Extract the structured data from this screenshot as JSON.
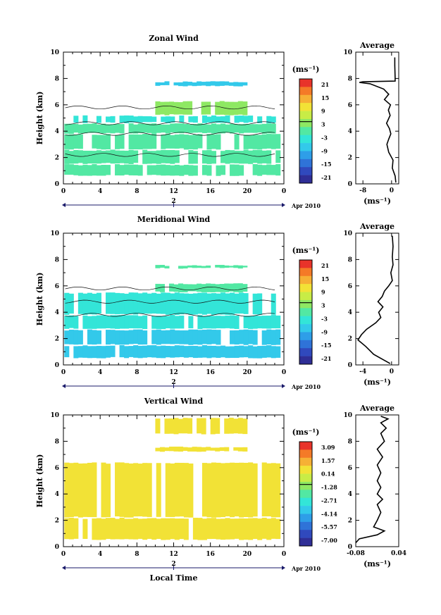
{
  "chart_data": [
    {
      "type": "heatmap",
      "title": "Zonal Wind",
      "ylabel": "Height (km)",
      "xlim": [
        0,
        24
      ],
      "ylim": [
        0,
        10
      ],
      "x_ticks": [
        "0",
        "4",
        "8",
        "12",
        "16",
        "20",
        "0"
      ],
      "y_ticks": [
        "0",
        "2",
        "4",
        "6",
        "8",
        "10"
      ],
      "date_marker": "2",
      "date_label": "Apr 2010",
      "colorbar": {
        "unit": "(ms⁻¹)",
        "ticks": [
          "21",
          "15",
          "9",
          "3",
          "-3",
          "-9",
          "-15",
          "-21"
        ]
      },
      "cells": [
        {
          "y0": 0.6,
          "y1": 1.5,
          "v": 1.5
        },
        {
          "y0": 1.5,
          "y1": 2.6,
          "v": -1.0
        },
        {
          "y0": 2.6,
          "y1": 3.8,
          "v": 0.5
        },
        {
          "y0": 3.8,
          "y1": 4.6,
          "v": -1.5
        },
        {
          "y0": 4.6,
          "y1": 5.2,
          "v": -2.2
        },
        {
          "y0": 5.2,
          "y1": 6.3,
          "v": 3.2
        },
        {
          "y0": 7.4,
          "y1": 7.8,
          "v": -6
        }
      ],
      "average": {
        "title": "Average",
        "xlabel": "(ms⁻¹)",
        "x_ticks": [
          "-8",
          "0"
        ],
        "xlim": [
          -10,
          2
        ],
        "profile_h": [
          0.1,
          0.6,
          1.2,
          1.8,
          2.4,
          3.0,
          3.4,
          3.8,
          4.2,
          4.6,
          5.2,
          5.6,
          6.0,
          6.4,
          6.8,
          7.2,
          7.6,
          7.7,
          7.75,
          7.8,
          8.0,
          9.0,
          9.6
        ],
        "profile_v": [
          1.2,
          1.0,
          0.2,
          0.4,
          -0.8,
          -1.3,
          -0.8,
          -0.2,
          -0.6,
          -1.4,
          -0.4,
          -0.9,
          -0.3,
          -2.0,
          -0.8,
          -2.2,
          -6.0,
          -9.0,
          -8.0,
          1.0,
          1.0,
          0.9,
          0.9
        ]
      }
    },
    {
      "type": "heatmap",
      "title": "Meridional Wind",
      "ylabel": "Height (km)",
      "xlim": [
        0,
        24
      ],
      "ylim": [
        0,
        10
      ],
      "x_ticks": [
        "0",
        "4",
        "8",
        "12",
        "16",
        "20",
        "0"
      ],
      "y_ticks": [
        "0",
        "2",
        "4",
        "6",
        "8",
        "10"
      ],
      "date_marker": "2",
      "date_label": "Apr 2010",
      "colorbar": {
        "unit": "(ms⁻¹)",
        "ticks": [
          "21",
          "15",
          "9",
          "3",
          "-3",
          "-9",
          "-15",
          "-21"
        ]
      },
      "cells": [
        {
          "y0": 0.5,
          "y1": 1.5,
          "v": -5.5
        },
        {
          "y0": 1.5,
          "y1": 2.7,
          "v": -6.5
        },
        {
          "y0": 2.7,
          "y1": 3.8,
          "v": -3.5
        },
        {
          "y0": 3.8,
          "y1": 5.5,
          "v": -2.5
        },
        {
          "y0": 5.5,
          "y1": 6.2,
          "v": -1.5
        },
        {
          "y0": 7.3,
          "y1": 7.6,
          "v": -1.5
        }
      ],
      "average": {
        "title": "Average",
        "xlabel": "(ms⁻¹)",
        "x_ticks": [
          "-4",
          "0"
        ],
        "xlim": [
          -5,
          1
        ],
        "profile_h": [
          0.1,
          0.8,
          1.4,
          1.9,
          2.3,
          2.7,
          3.2,
          3.6,
          4.0,
          4.4,
          4.8,
          5.2,
          5.6,
          6.0,
          6.4,
          7.0,
          7.6,
          8.2,
          9.0,
          9.8
        ],
        "profile_v": [
          -0.2,
          -2.5,
          -3.6,
          -4.7,
          -4.2,
          -3.5,
          -2.2,
          -1.5,
          -1.8,
          -1.2,
          -1.9,
          -1.3,
          -1.0,
          -0.4,
          0.1,
          -0.1,
          0.2,
          0.1,
          0.2,
          0.1
        ]
      }
    },
    {
      "type": "heatmap",
      "title": "Vertical Wind",
      "xlabel": "Local Time",
      "ylabel": "Height (km)",
      "xlim": [
        0,
        24
      ],
      "ylim": [
        0,
        10
      ],
      "x_ticks": [
        "0",
        "4",
        "8",
        "12",
        "16",
        "20",
        "0"
      ],
      "y_ticks": [
        "0",
        "2",
        "4",
        "6",
        "8",
        "10"
      ],
      "date_marker": "2",
      "date_label": "Apr 2010",
      "colorbar": {
        "unit": "(ms⁻¹)",
        "ticks": [
          "3.09",
          "1.57",
          "0.14",
          "-1.28",
          "-2.71",
          "-4.14",
          "-5.57",
          "-7.00"
        ]
      },
      "cells": [
        {
          "y0": 0.5,
          "y1": 2.2,
          "v": 0.6
        },
        {
          "y0": 2.2,
          "y1": 6.4,
          "v": 0.3
        },
        {
          "y0": 7.2,
          "y1": 7.6,
          "v": 0.3
        },
        {
          "y0": 8.5,
          "y1": 9.8,
          "v": 0.3
        }
      ],
      "average": {
        "title": "Average",
        "xlabel": "(ms⁻¹)",
        "x_ticks": [
          "-0.08",
          "0.04"
        ],
        "xlim": [
          -0.08,
          0.04
        ],
        "profile_h": [
          0.3,
          0.6,
          0.9,
          1.2,
          1.5,
          2.0,
          2.6,
          3.2,
          3.6,
          4.0,
          4.5,
          5.0,
          5.6,
          6.2,
          6.8,
          7.4,
          8.0,
          8.6,
          9.0,
          9.4,
          9.7,
          9.9
        ],
        "profile_v": [
          -0.08,
          -0.07,
          -0.02,
          0.0,
          -0.03,
          -0.02,
          -0.01,
          -0.02,
          -0.005,
          -0.02,
          -0.01,
          -0.02,
          -0.01,
          -0.02,
          -0.005,
          -0.02,
          0.0,
          -0.01,
          0.005,
          -0.01,
          0.01,
          -0.01
        ]
      }
    }
  ]
}
